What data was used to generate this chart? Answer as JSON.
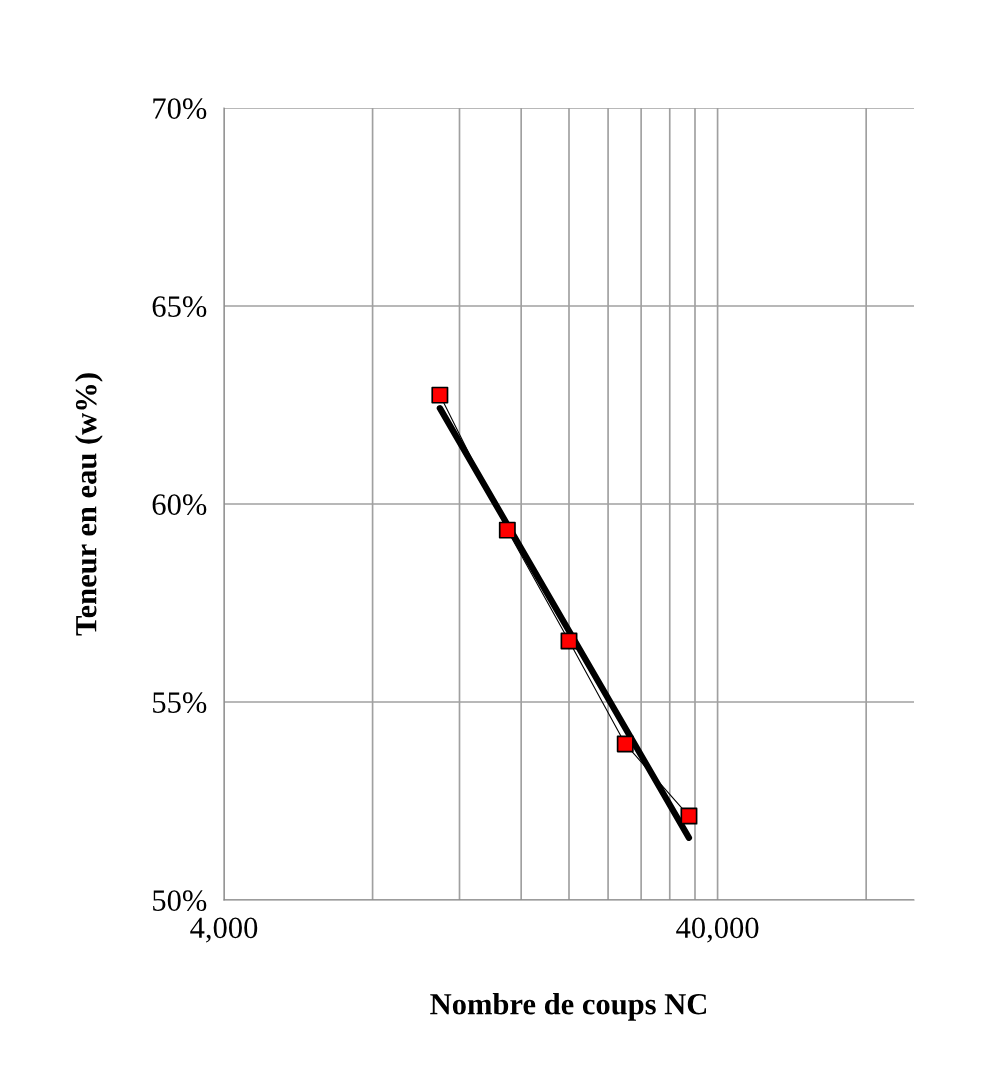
{
  "chart_data": {
    "type": "line",
    "xlabel": "Nombre de coups NC",
    "ylabel": "Teneur en eau (w%)",
    "log": "x",
    "xlim": [
      4000,
      100000
    ],
    "xticks": [
      {
        "value": 4000,
        "label": "4,000"
      },
      {
        "value": 8000,
        "label": null
      },
      {
        "value": 12000,
        "label": null
      },
      {
        "value": 16000,
        "label": null
      },
      {
        "value": 20000,
        "label": null
      },
      {
        "value": 24000,
        "label": null
      },
      {
        "value": 28000,
        "label": null
      },
      {
        "value": 32000,
        "label": null
      },
      {
        "value": 36000,
        "label": null
      },
      {
        "value": 40000,
        "label": "40,000"
      },
      {
        "value": 80000,
        "label": null
      }
    ],
    "ylim": [
      50,
      70
    ],
    "yticks": [
      {
        "value": 50,
        "label": "50%"
      },
      {
        "value": 55,
        "label": "55%"
      },
      {
        "value": 60,
        "label": "60%"
      },
      {
        "value": 65,
        "label": "65%"
      },
      {
        "value": 70,
        "label": "70%"
      }
    ],
    "grid": true,
    "legend": false,
    "series": [
      {
        "color": "#000000",
        "colors": [
          "#ff0000",
          "#ff0000",
          "#ff0000",
          "#ff0000",
          "#ff0000"
        ],
        "marker": "square",
        "line_style": "solid",
        "x": [
          10950,
          15000,
          20000,
          26000,
          35000
        ],
        "values": [
          62.75,
          59.34,
          56.54,
          53.94,
          52.12
        ]
      },
      {
        "color": "#000000",
        "marker": "none",
        "line_style": "solid",
        "x": [
          10950,
          35000
        ],
        "values": [
          62.42,
          51.57
        ]
      }
    ]
  }
}
